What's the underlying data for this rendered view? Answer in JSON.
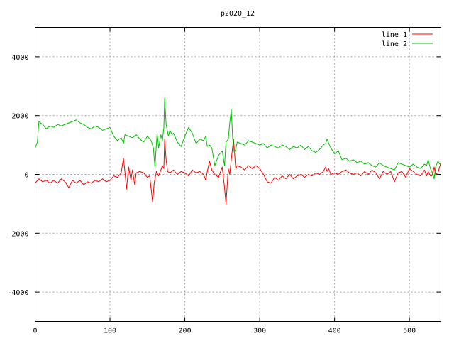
{
  "chart_data": {
    "type": "line",
    "title": "p2020_12",
    "xlabel": "",
    "ylabel": "",
    "xlim": [
      0,
      542
    ],
    "ylim": [
      -5000,
      5000
    ],
    "xticks": [
      0,
      100,
      200,
      300,
      400,
      500
    ],
    "yticks": [
      -4000,
      -2000,
      0,
      2000,
      4000
    ],
    "grid": true,
    "legend": "top-right",
    "series": [
      {
        "name": "line 1",
        "color": "#ff0000",
        "x": [
          0,
          5,
          10,
          15,
          20,
          25,
          30,
          35,
          40,
          45,
          50,
          55,
          60,
          65,
          70,
          75,
          80,
          85,
          90,
          95,
          100,
          105,
          110,
          115,
          118,
          120,
          122,
          125,
          128,
          130,
          133,
          135,
          140,
          145,
          150,
          153,
          155,
          157,
          159,
          162,
          165,
          168,
          170,
          172,
          173,
          175,
          177,
          180,
          185,
          190,
          195,
          200,
          205,
          210,
          215,
          220,
          225,
          228,
          230,
          233,
          236,
          240,
          245,
          250,
          253,
          255,
          258,
          260,
          262,
          265,
          268,
          270,
          275,
          280,
          285,
          290,
          295,
          300,
          305,
          310,
          315,
          320,
          325,
          330,
          335,
          340,
          345,
          350,
          355,
          360,
          365,
          370,
          375,
          380,
          385,
          388,
          390,
          392,
          395,
          400,
          405,
          410,
          415,
          420,
          425,
          430,
          435,
          440,
          445,
          450,
          455,
          460,
          465,
          470,
          475,
          480,
          485,
          490,
          495,
          500,
          505,
          510,
          515,
          520,
          523,
          525,
          528,
          530,
          533,
          535,
          538,
          542
        ],
        "y": [
          -300,
          -150,
          -250,
          -200,
          -300,
          -200,
          -300,
          -150,
          -250,
          -450,
          -200,
          -300,
          -200,
          -350,
          -250,
          -300,
          -200,
          -250,
          -150,
          -250,
          -200,
          -50,
          -100,
          50,
          550,
          100,
          -500,
          250,
          -200,
          150,
          -350,
          50,
          100,
          50,
          -100,
          -50,
          -500,
          -950,
          -300,
          100,
          -50,
          150,
          300,
          200,
          1200,
          500,
          100,
          50,
          150,
          0,
          100,
          50,
          -50,
          150,
          50,
          100,
          0,
          -200,
          100,
          450,
          150,
          0,
          -100,
          250,
          -450,
          -1000,
          200,
          0,
          500,
          1200,
          200,
          300,
          250,
          150,
          300,
          200,
          300,
          200,
          0,
          -250,
          -300,
          -100,
          -200,
          -50,
          -150,
          0,
          -150,
          -50,
          0,
          -100,
          0,
          -50,
          50,
          0,
          100,
          250,
          100,
          200,
          0,
          50,
          0,
          100,
          150,
          50,
          0,
          50,
          -50,
          100,
          0,
          150,
          50,
          -150,
          100,
          0,
          100,
          -250,
          50,
          100,
          -100,
          200,
          100,
          0,
          -50,
          150,
          -50,
          100,
          -50,
          -50,
          250,
          0,
          50,
          400
        ]
      },
      {
        "name": "line 2",
        "color": "#00c000",
        "x": [
          0,
          3,
          5,
          10,
          15,
          20,
          25,
          30,
          35,
          40,
          45,
          50,
          55,
          60,
          65,
          70,
          75,
          80,
          85,
          90,
          95,
          100,
          105,
          110,
          115,
          118,
          120,
          125,
          130,
          135,
          140,
          145,
          150,
          155,
          158,
          160,
          163,
          165,
          168,
          170,
          172,
          173,
          175,
          178,
          180,
          183,
          185,
          190,
          195,
          200,
          205,
          210,
          215,
          220,
          225,
          228,
          230,
          233,
          236,
          240,
          245,
          250,
          253,
          255,
          258,
          260,
          262,
          264,
          266,
          268,
          270,
          275,
          280,
          285,
          290,
          295,
          300,
          305,
          310,
          315,
          320,
          325,
          330,
          335,
          340,
          345,
          350,
          355,
          360,
          365,
          370,
          375,
          380,
          385,
          388,
          390,
          393,
          395,
          400,
          405,
          410,
          415,
          420,
          425,
          430,
          435,
          440,
          445,
          450,
          455,
          460,
          465,
          470,
          475,
          480,
          485,
          490,
          495,
          500,
          505,
          510,
          515,
          520,
          523,
          525,
          528,
          530,
          533,
          535,
          538,
          542
        ],
        "y": [
          900,
          1100,
          1800,
          1700,
          1550,
          1650,
          1600,
          1700,
          1650,
          1700,
          1750,
          1800,
          1850,
          1750,
          1700,
          1600,
          1550,
          1650,
          1600,
          1500,
          1550,
          1600,
          1300,
          1150,
          1250,
          1050,
          1350,
          1300,
          1250,
          1350,
          1200,
          1100,
          1300,
          1150,
          900,
          250,
          1400,
          900,
          1350,
          1150,
          1600,
          2600,
          1700,
          1300,
          1500,
          1350,
          1400,
          1100,
          950,
          1300,
          1600,
          1400,
          1050,
          1200,
          1150,
          1300,
          950,
          1000,
          900,
          300,
          650,
          800,
          300,
          1100,
          1200,
          1750,
          2200,
          1200,
          750,
          850,
          1100,
          1050,
          1000,
          1150,
          1100,
          1050,
          1000,
          1050,
          900,
          1000,
          950,
          900,
          1000,
          950,
          850,
          950,
          900,
          1000,
          850,
          950,
          800,
          750,
          850,
          1000,
          1050,
          1200,
          1000,
          900,
          700,
          800,
          500,
          550,
          450,
          500,
          400,
          450,
          350,
          400,
          300,
          250,
          400,
          300,
          250,
          200,
          150,
          400,
          350,
          300,
          250,
          350,
          250,
          200,
          350,
          300,
          500,
          200,
          100,
          -150,
          250,
          450,
          300
        ]
      }
    ]
  }
}
